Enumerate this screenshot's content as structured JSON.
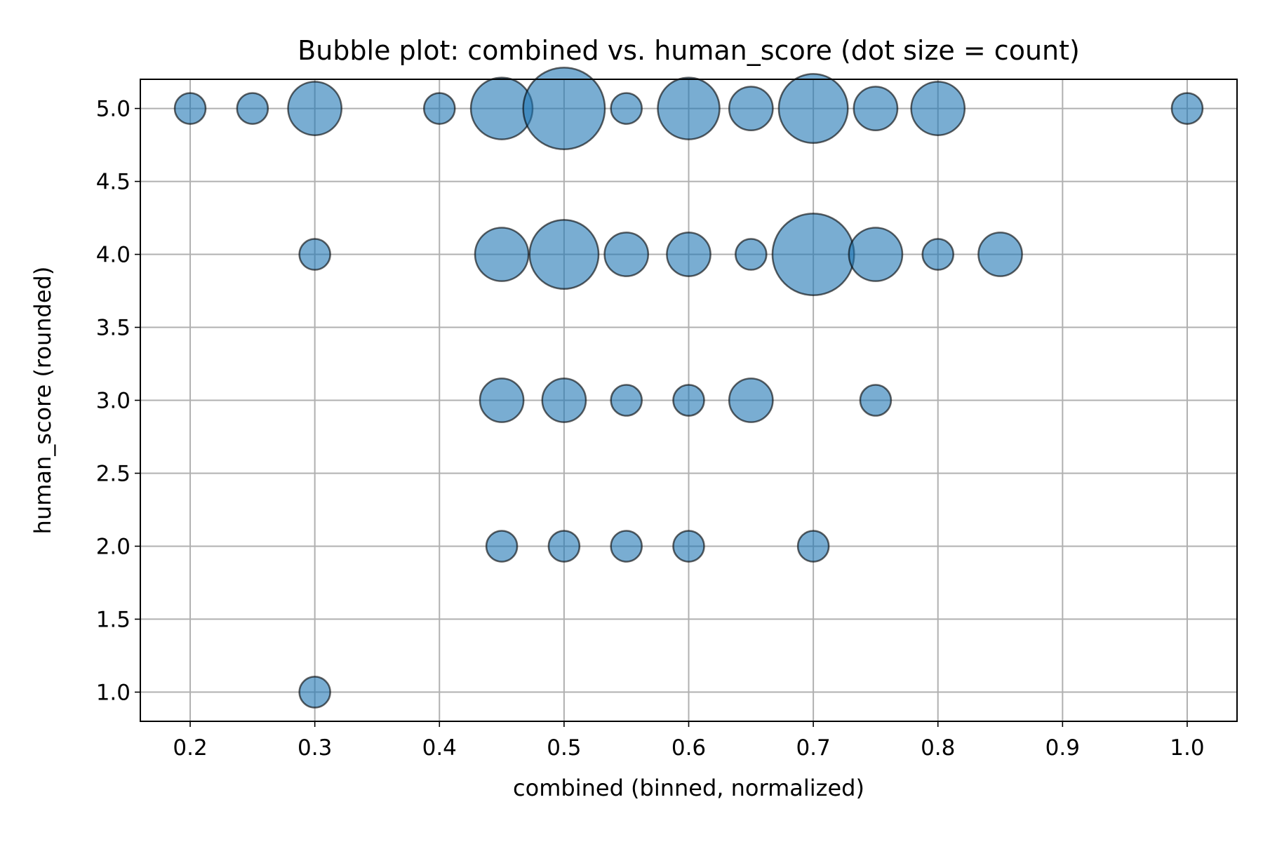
{
  "chart_data": {
    "type": "scatter",
    "title": "Bubble plot: combined vs. human_score (dot size = count)",
    "xlabel": "combined (binned, normalized)",
    "ylabel": "human_score (rounded)",
    "xlim": [
      0.16,
      1.04
    ],
    "ylim": [
      0.8,
      5.2
    ],
    "xticks": [
      0.2,
      0.3,
      0.4,
      0.5,
      0.6,
      0.7,
      0.8,
      0.9,
      1.0
    ],
    "xtick_labels": [
      "0.2",
      "0.3",
      "0.4",
      "0.5",
      "0.6",
      "0.7",
      "0.8",
      "0.9",
      "1.0"
    ],
    "yticks": [
      1.0,
      1.5,
      2.0,
      2.5,
      3.0,
      3.5,
      4.0,
      4.5,
      5.0
    ],
    "ytick_labels": [
      "1.0",
      "1.5",
      "2.0",
      "2.5",
      "3.0",
      "3.5",
      "4.0",
      "4.5",
      "5.0"
    ],
    "grid": true,
    "marker_color": "#1f77b4",
    "marker_alpha": 0.6,
    "edge_color": "#000000",
    "points": [
      {
        "x": 0.2,
        "y": 5.0,
        "count": 1
      },
      {
        "x": 0.25,
        "y": 5.0,
        "count": 1
      },
      {
        "x": 0.3,
        "y": 5.0,
        "count": 3
      },
      {
        "x": 0.4,
        "y": 5.0,
        "count": 1
      },
      {
        "x": 0.45,
        "y": 5.0,
        "count": 4
      },
      {
        "x": 0.5,
        "y": 5.0,
        "count": 7
      },
      {
        "x": 0.55,
        "y": 5.0,
        "count": 1
      },
      {
        "x": 0.6,
        "y": 5.0,
        "count": 4
      },
      {
        "x": 0.65,
        "y": 5.0,
        "count": 2
      },
      {
        "x": 0.7,
        "y": 5.0,
        "count": 5
      },
      {
        "x": 0.75,
        "y": 5.0,
        "count": 2
      },
      {
        "x": 0.8,
        "y": 5.0,
        "count": 3
      },
      {
        "x": 1.0,
        "y": 5.0,
        "count": 1
      },
      {
        "x": 0.3,
        "y": 4.0,
        "count": 1
      },
      {
        "x": 0.45,
        "y": 4.0,
        "count": 3
      },
      {
        "x": 0.5,
        "y": 4.0,
        "count": 5
      },
      {
        "x": 0.55,
        "y": 4.0,
        "count": 2
      },
      {
        "x": 0.6,
        "y": 4.0,
        "count": 2
      },
      {
        "x": 0.65,
        "y": 4.0,
        "count": 1
      },
      {
        "x": 0.7,
        "y": 4.0,
        "count": 7
      },
      {
        "x": 0.75,
        "y": 4.0,
        "count": 3
      },
      {
        "x": 0.8,
        "y": 4.0,
        "count": 1
      },
      {
        "x": 0.85,
        "y": 4.0,
        "count": 2
      },
      {
        "x": 0.45,
        "y": 3.0,
        "count": 2
      },
      {
        "x": 0.5,
        "y": 3.0,
        "count": 2
      },
      {
        "x": 0.55,
        "y": 3.0,
        "count": 1
      },
      {
        "x": 0.6,
        "y": 3.0,
        "count": 1
      },
      {
        "x": 0.65,
        "y": 3.0,
        "count": 2
      },
      {
        "x": 0.75,
        "y": 3.0,
        "count": 1
      },
      {
        "x": 0.45,
        "y": 2.0,
        "count": 1
      },
      {
        "x": 0.5,
        "y": 2.0,
        "count": 1
      },
      {
        "x": 0.55,
        "y": 2.0,
        "count": 1
      },
      {
        "x": 0.6,
        "y": 2.0,
        "count": 1
      },
      {
        "x": 0.7,
        "y": 2.0,
        "count": 1
      },
      {
        "x": 0.3,
        "y": 1.0,
        "count": 1
      }
    ]
  }
}
